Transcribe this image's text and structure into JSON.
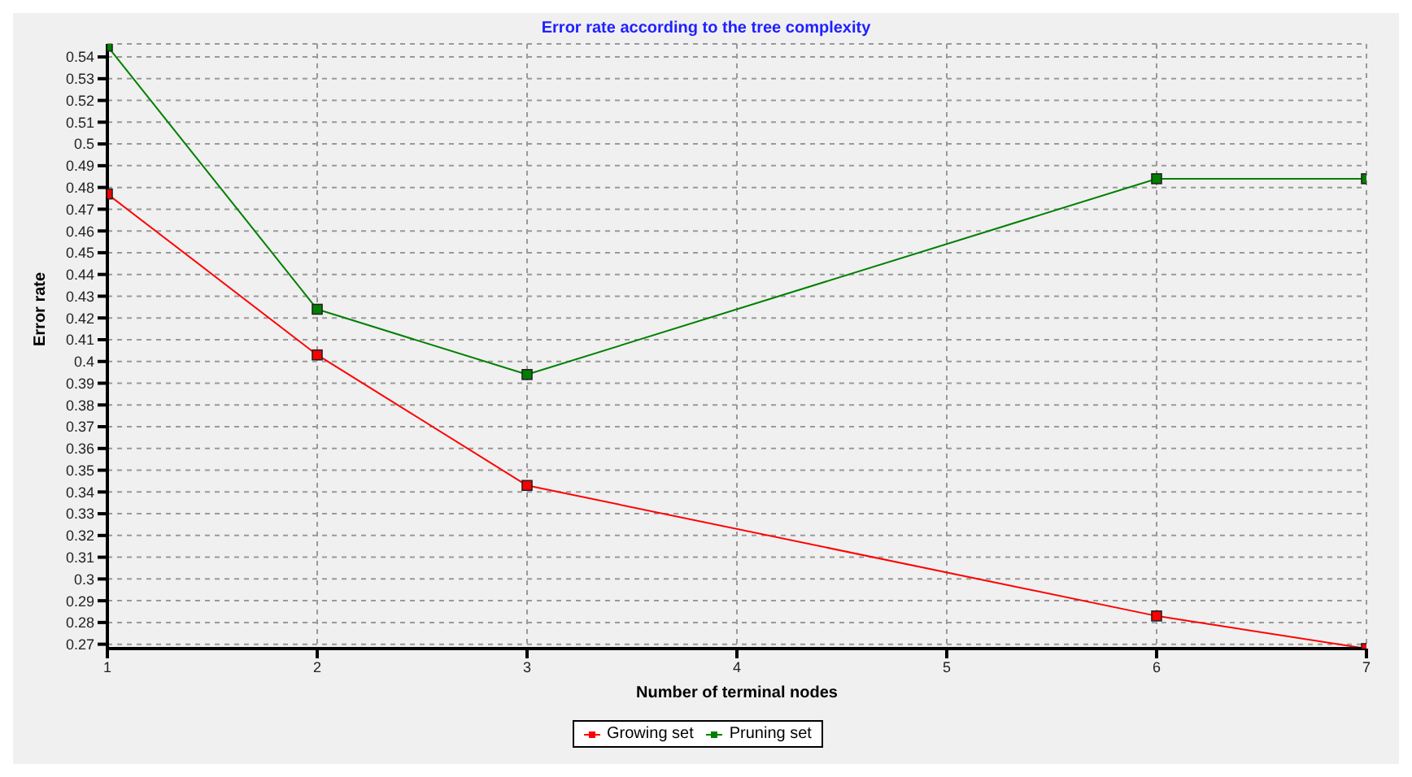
{
  "chart_data": {
    "type": "line",
    "title": "Error rate according to the tree complexity",
    "xlabel": "Number of terminal nodes",
    "ylabel": "Error rate",
    "x": [
      1,
      2,
      3,
      6,
      7
    ],
    "series": [
      {
        "name": "Growing set",
        "color": "#ff0000",
        "values": [
          0.477,
          0.403,
          0.343,
          0.283,
          0.268
        ]
      },
      {
        "name": "Pruning set",
        "color": "#008000",
        "values": [
          0.545,
          0.424,
          0.394,
          0.484,
          0.484
        ]
      }
    ],
    "xlim": [
      1,
      7
    ],
    "xticks": [
      1,
      2,
      3,
      4,
      5,
      6,
      7
    ],
    "ylim": [
      0.268,
      0.546
    ],
    "yticks": [
      0.27,
      0.28,
      0.29,
      0.3,
      0.31,
      0.32,
      0.33,
      0.34,
      0.35,
      0.36,
      0.37,
      0.38,
      0.39,
      0.4,
      0.41,
      0.42,
      0.43,
      0.44,
      0.45,
      0.46,
      0.47,
      0.48,
      0.49,
      0.5,
      0.51,
      0.52,
      0.53,
      0.54
    ],
    "grid": true,
    "legend": "bottom",
    "marker": "square",
    "line_style": "solid"
  }
}
